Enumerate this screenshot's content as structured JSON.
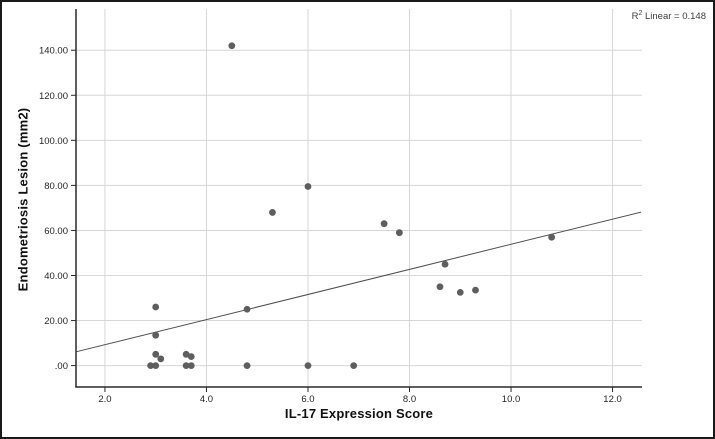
{
  "chart_data": {
    "type": "scatter",
    "title": "",
    "xlabel": "IL-17 Expression Score",
    "ylabel": "Endometriosis Lesion (mm2)",
    "xlim": [
      1.43,
      12.58
    ],
    "ylim": [
      -9.5,
      158.3
    ],
    "x_ticks": [
      2.0,
      4.0,
      6.0,
      8.0,
      10.0,
      12.0
    ],
    "y_ticks": [
      0,
      20,
      40,
      60,
      80,
      100,
      120,
      140
    ],
    "x_tick_labels": [
      "2.0",
      "4.0",
      "6.0",
      "8.0",
      "10.0",
      "12.0"
    ],
    "y_tick_labels": [
      ".00",
      "20.00",
      "40.00",
      "60.00",
      "80.00",
      "100.00",
      "120.00",
      "140.00"
    ],
    "grid": true,
    "legend": "none",
    "points": [
      [
        2.9,
        0
      ],
      [
        3.0,
        0
      ],
      [
        3.0,
        5
      ],
      [
        3.1,
        3
      ],
      [
        3.0,
        13.5
      ],
      [
        3.0,
        26
      ],
      [
        3.6,
        0
      ],
      [
        3.7,
        0
      ],
      [
        3.6,
        5
      ],
      [
        3.7,
        4
      ],
      [
        4.5,
        142
      ],
      [
        4.8,
        0
      ],
      [
        4.8,
        25
      ],
      [
        5.3,
        68
      ],
      [
        6.0,
        0
      ],
      [
        6.0,
        79.5
      ],
      [
        6.9,
        0
      ],
      [
        7.5,
        63
      ],
      [
        7.8,
        59
      ],
      [
        8.6,
        35
      ],
      [
        8.7,
        45
      ],
      [
        9.0,
        32.5
      ],
      [
        9.3,
        33.5
      ],
      [
        10.8,
        57
      ]
    ],
    "fit_line": {
      "slope": 5.57,
      "intercept": -1.85,
      "x_start": 1.43,
      "x_end": 12.56
    },
    "r_squared": 0.148,
    "annotation": {
      "prefix": "R",
      "sup": "2",
      "rest": " Linear = 0.148",
      "text": "R2 Linear = 0.148",
      "position": "top-right"
    },
    "colors": {
      "point": "#5e5e5e",
      "fit_line": "#4f4f4f",
      "grid": "#d6d6d6",
      "axis": "#2a2a2a",
      "tick_text": "#262626",
      "background": "#ffffff",
      "border": "#1a1a1a"
    }
  }
}
